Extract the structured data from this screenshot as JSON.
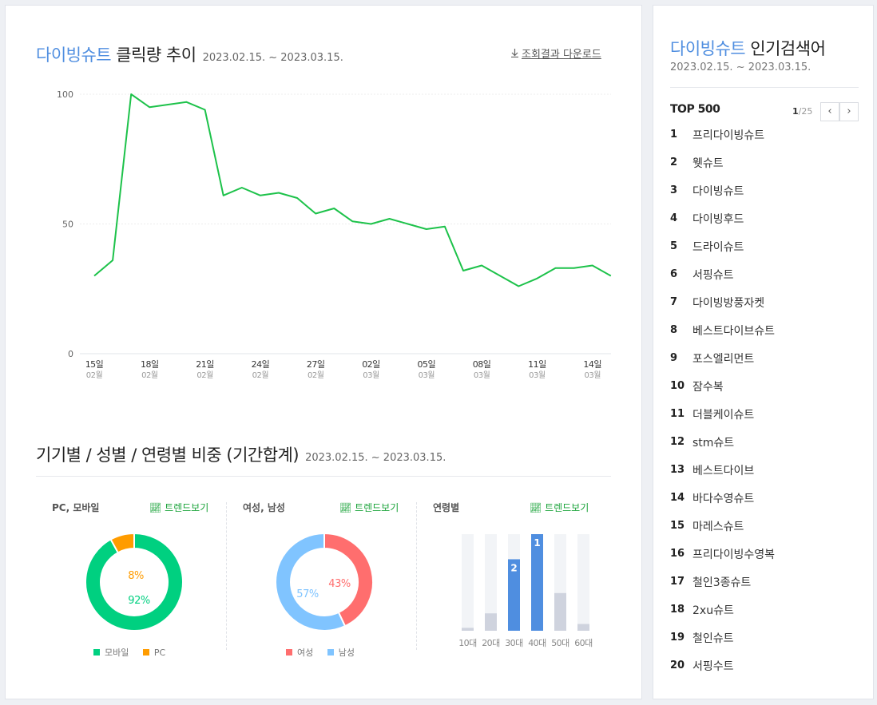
{
  "main": {
    "trend_title": {
      "keyword": "다이빙슈트",
      "suffix": " 클릭량 추이",
      "period": "2023.02.15. ~ 2023.03.15."
    },
    "download_label": "조회결과 다운로드",
    "ratio_title": {
      "text": "기기별 / 성별 / 연령별 비중 (기간합계)",
      "period": "2023.02.15. ~ 2023.03.15."
    },
    "device": {
      "label": "PC, 모바일",
      "trend_label": "트렌드보기",
      "legend": [
        "모바일",
        "PC"
      ]
    },
    "gender": {
      "label": "여성, 남성",
      "trend_label": "트렌드보기",
      "legend": [
        "여성",
        "남성"
      ]
    },
    "age": {
      "label": "연령별",
      "trend_label": "트렌드보기"
    }
  },
  "chart_data": [
    {
      "type": "line",
      "title": "다이빙슈트 클릭량 추이",
      "x": [
        "2023-02-15",
        "2023-02-16",
        "2023-02-17",
        "2023-02-18",
        "2023-02-19",
        "2023-02-20",
        "2023-02-21",
        "2023-02-22",
        "2023-02-23",
        "2023-02-24",
        "2023-02-25",
        "2023-02-26",
        "2023-02-27",
        "2023-02-28",
        "2023-03-01",
        "2023-03-02",
        "2023-03-03",
        "2023-03-04",
        "2023-03-05",
        "2023-03-06",
        "2023-03-07",
        "2023-03-08",
        "2023-03-09",
        "2023-03-10",
        "2023-03-11",
        "2023-03-12",
        "2023-03-13",
        "2023-03-14",
        "2023-03-15"
      ],
      "values": [
        30,
        36,
        100,
        95,
        96,
        97,
        94,
        61,
        64,
        61,
        62,
        60,
        54,
        56,
        51,
        50,
        52,
        50,
        48,
        49,
        32,
        34,
        30,
        26,
        29,
        33,
        33,
        34,
        30
      ],
      "x_ticks": [
        {
          "day": "15일",
          "month": "02월",
          "index": 0
        },
        {
          "day": "18일",
          "month": "02월",
          "index": 3
        },
        {
          "day": "21일",
          "month": "02월",
          "index": 6
        },
        {
          "day": "24일",
          "month": "02월",
          "index": 9
        },
        {
          "day": "27일",
          "month": "02월",
          "index": 12
        },
        {
          "day": "02일",
          "month": "03월",
          "index": 15
        },
        {
          "day": "05일",
          "month": "03월",
          "index": 18
        },
        {
          "day": "08일",
          "month": "03월",
          "index": 21
        },
        {
          "day": "11일",
          "month": "03월",
          "index": 24
        },
        {
          "day": "14일",
          "month": "03월",
          "index": 27
        }
      ],
      "y_ticks": [
        0,
        50,
        100
      ],
      "ylim": [
        0,
        100
      ],
      "color": "#1dc24a",
      "grid": true
    },
    {
      "type": "pie",
      "name": "PC, 모바일",
      "series": [
        {
          "name": "모바일",
          "value": 92,
          "label": "92%",
          "color": "#00d080"
        },
        {
          "name": "PC",
          "value": 8,
          "label": "8%",
          "color": "#ff9c00"
        }
      ]
    },
    {
      "type": "pie",
      "name": "여성, 남성",
      "series": [
        {
          "name": "여성",
          "value": 43,
          "label": "43%",
          "color": "#ff6e6e"
        },
        {
          "name": "남성",
          "value": 57,
          "label": "57%",
          "color": "#80c4ff"
        }
      ]
    },
    {
      "type": "bar",
      "name": "연령별",
      "categories": [
        "10대",
        "20대",
        "30대",
        "40대",
        "50대",
        "60대"
      ],
      "values": [
        3,
        18,
        74,
        100,
        39,
        7
      ],
      "rank_labels": [
        "",
        "",
        "2",
        "1",
        "",
        ""
      ],
      "colors": {
        "top": "#4f8ee0",
        "other": "#cfd3de",
        "track": "#f2f4f7"
      },
      "ylim": [
        0,
        100
      ]
    }
  ],
  "side": {
    "title_keyword": "다이빙슈트",
    "title_suffix": " 인기검색어",
    "period": "2023.02.15. ~ 2023.03.15.",
    "top_label": "TOP 500",
    "pager": {
      "current": "1",
      "total": "/25"
    },
    "prev_icon": "‹",
    "next_icon": "›",
    "ranks": [
      {
        "num": "1",
        "kw": "프리다이빙슈트"
      },
      {
        "num": "2",
        "kw": "웻슈트"
      },
      {
        "num": "3",
        "kw": "다이빙슈트"
      },
      {
        "num": "4",
        "kw": "다이빙후드"
      },
      {
        "num": "5",
        "kw": "드라이슈트"
      },
      {
        "num": "6",
        "kw": "서핑슈트"
      },
      {
        "num": "7",
        "kw": "다이빙방풍자켓"
      },
      {
        "num": "8",
        "kw": "베스트다이브슈트"
      },
      {
        "num": "9",
        "kw": "포스엘리먼트"
      },
      {
        "num": "10",
        "kw": "잠수복"
      },
      {
        "num": "11",
        "kw": "더블케이슈트"
      },
      {
        "num": "12",
        "kw": "stm슈트"
      },
      {
        "num": "13",
        "kw": "베스트다이브"
      },
      {
        "num": "14",
        "kw": "바다수영슈트"
      },
      {
        "num": "15",
        "kw": "마레스슈트"
      },
      {
        "num": "16",
        "kw": "프리다이빙수영복"
      },
      {
        "num": "17",
        "kw": "철인3종슈트"
      },
      {
        "num": "18",
        "kw": "2xu슈트"
      },
      {
        "num": "19",
        "kw": "철인슈트"
      },
      {
        "num": "20",
        "kw": "서핑수트"
      }
    ]
  }
}
